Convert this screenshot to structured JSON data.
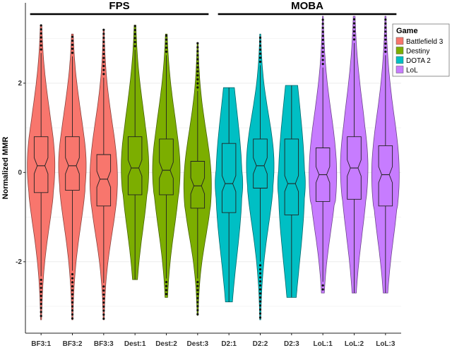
{
  "chart_data": {
    "type": "violin",
    "title": "",
    "xlabel": "",
    "ylabel": "Normalized MMR",
    "ylim": [
      -3.6,
      3.8
    ],
    "yticks": [
      2,
      0,
      -2
    ],
    "grid": true,
    "legend_position": "top-right",
    "groups": [
      {
        "label": "FPS",
        "categories": [
          "BF3:1",
          "BF3:2",
          "BF3:3",
          "Dest:1",
          "Dest:2",
          "Dest:3"
        ]
      },
      {
        "label": "MOBA",
        "categories": [
          "D2:1",
          "D2:2",
          "D2:3",
          "LoL:1",
          "LoL:2",
          "LoL:3"
        ]
      }
    ],
    "legend": {
      "title": "Game",
      "entries": [
        "Battlefield 3",
        "Destiny",
        "DOTA 2",
        "LoL"
      ]
    },
    "colors": {
      "Battlefield 3": "#f8766d",
      "Destiny": "#7cae00",
      "DOTA 2": "#00bfc4",
      "LoL": "#c77cff"
    },
    "categories": [
      "BF3:1",
      "BF3:2",
      "BF3:3",
      "Dest:1",
      "Dest:2",
      "Dest:3",
      "D2:1",
      "D2:2",
      "D2:3",
      "LoL:1",
      "LoL:2",
      "LoL:3"
    ],
    "series": [
      {
        "category": "BF3:1",
        "game": "Battlefield 3",
        "min": -3.3,
        "q1": -0.45,
        "median": 0.15,
        "q3": 0.8,
        "max": 3.3
      },
      {
        "category": "BF3:2",
        "game": "Battlefield 3",
        "min": -3.3,
        "q1": -0.4,
        "median": 0.15,
        "q3": 0.8,
        "max": 3.1
      },
      {
        "category": "BF3:3",
        "game": "Battlefield 3",
        "min": -3.3,
        "q1": -0.75,
        "median": -0.15,
        "q3": 0.4,
        "max": 3.2
      },
      {
        "category": "Dest:1",
        "game": "Destiny",
        "min": -2.4,
        "q1": -0.5,
        "median": 0.1,
        "q3": 0.8,
        "max": 3.3
      },
      {
        "category": "Dest:2",
        "game": "Destiny",
        "min": -2.8,
        "q1": -0.5,
        "median": 0.05,
        "q3": 0.75,
        "max": 3.1
      },
      {
        "category": "Dest:3",
        "game": "Destiny",
        "min": -3.2,
        "q1": -0.8,
        "median": -0.3,
        "q3": 0.25,
        "max": 2.9
      },
      {
        "category": "D2:1",
        "game": "DOTA 2",
        "min": -2.9,
        "q1": -0.9,
        "median": -0.25,
        "q3": 0.65,
        "max": 1.9
      },
      {
        "category": "D2:2",
        "game": "DOTA 2",
        "min": -3.3,
        "q1": -0.35,
        "median": 0.15,
        "q3": 0.75,
        "max": 3.1
      },
      {
        "category": "D2:3",
        "game": "DOTA 2",
        "min": -2.8,
        "q1": -0.95,
        "median": -0.25,
        "q3": 0.75,
        "max": 1.95
      },
      {
        "category": "LoL:1",
        "game": "LoL",
        "min": -2.7,
        "q1": -0.65,
        "median": -0.05,
        "q3": 0.55,
        "max": 3.5
      },
      {
        "category": "LoL:2",
        "game": "LoL",
        "min": -2.7,
        "q1": -0.6,
        "median": 0.1,
        "q3": 0.8,
        "max": 3.5
      },
      {
        "category": "LoL:3",
        "game": "LoL",
        "min": -2.7,
        "q1": -0.75,
        "median": -0.05,
        "q3": 0.6,
        "max": 3.5
      }
    ]
  }
}
